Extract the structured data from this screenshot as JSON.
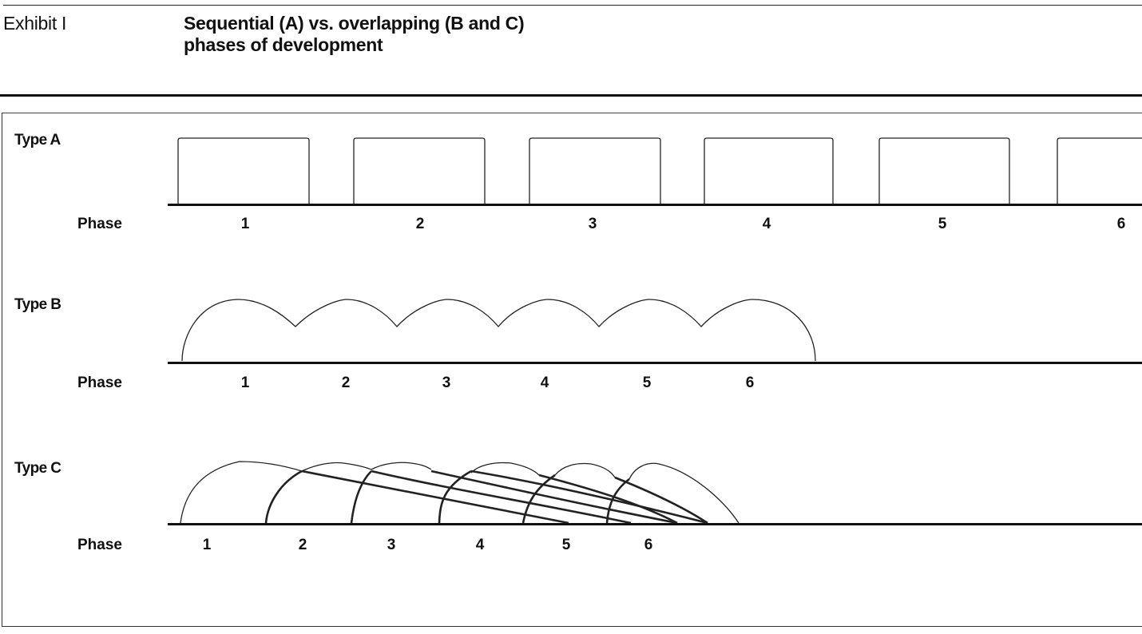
{
  "exhibit": {
    "label": "Exhibit I",
    "title_line1": "Sequential (A) vs. overlapping (B and C)",
    "title_line2": "phases of development"
  },
  "types": [
    {
      "label": "Type A",
      "phase_label": "Phase",
      "phases": [
        "1",
        "2",
        "3",
        "4",
        "5",
        "6"
      ]
    },
    {
      "label": "Type B",
      "phase_label": "Phase",
      "phases": [
        "1",
        "2",
        "3",
        "4",
        "5",
        "6"
      ]
    },
    {
      "label": "Type C",
      "phase_label": "Phase",
      "phases": [
        "1",
        "2",
        "3",
        "4",
        "5",
        "6"
      ]
    }
  ]
}
